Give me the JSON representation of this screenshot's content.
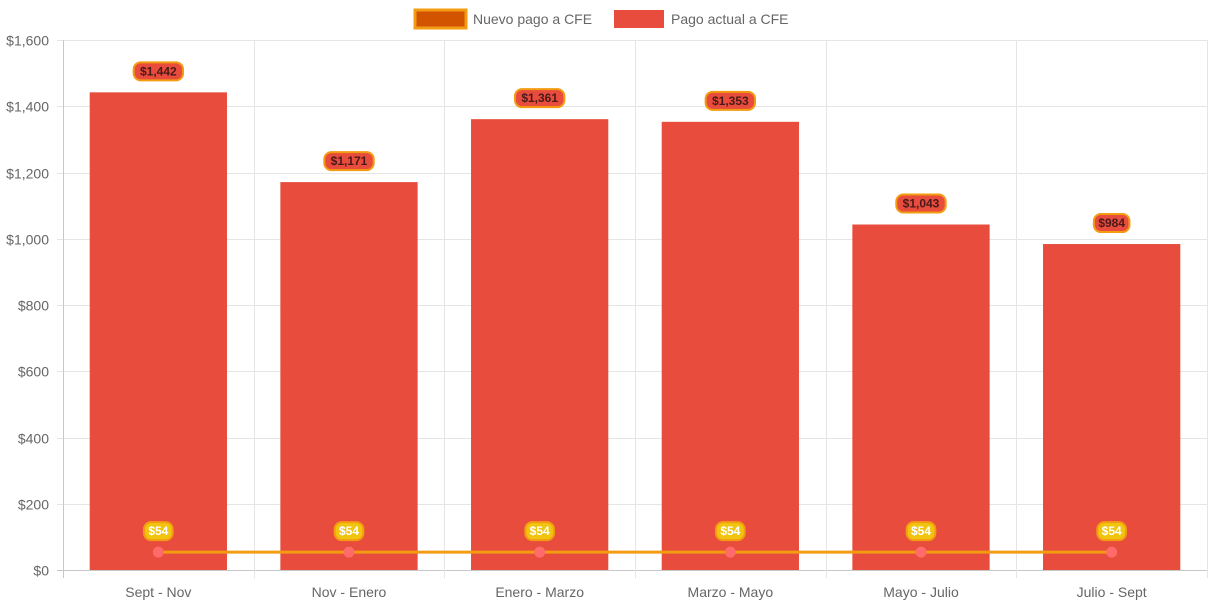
{
  "chart_data": {
    "type": "bar",
    "categories": [
      "Sept - Nov",
      "Nov - Enero",
      "Enero - Marzo",
      "Marzo - Mayo",
      "Mayo - Julio",
      "Julio - Sept"
    ],
    "ylim": [
      0,
      1600
    ],
    "yticks": [
      0,
      200,
      400,
      600,
      800,
      1000,
      1200,
      1400,
      1600
    ],
    "ytick_labels": [
      "$0",
      "$200",
      "$400",
      "$600",
      "$800",
      "$1,000",
      "$1,200",
      "$1,400",
      "$1,600"
    ],
    "grid": true,
    "legend_position": "top-center",
    "series": [
      {
        "name": "Nuevo pago a CFE",
        "type": "line",
        "color": "#f39c12",
        "point_color": "#ff6b6b",
        "swatch_color": "#d35400",
        "values": [
          54,
          54,
          54,
          54,
          54,
          54
        ],
        "labels": [
          "$54",
          "$54",
          "$54",
          "$54",
          "$54",
          "$54"
        ]
      },
      {
        "name": "Pago actual a CFE",
        "type": "bar",
        "color": "#e74c3c",
        "values": [
          1442,
          1171,
          1361,
          1353,
          1043,
          984
        ],
        "labels": [
          "$1,442",
          "$1,171",
          "$1,361",
          "$1,353",
          "$1,043",
          "$984"
        ]
      }
    ]
  }
}
